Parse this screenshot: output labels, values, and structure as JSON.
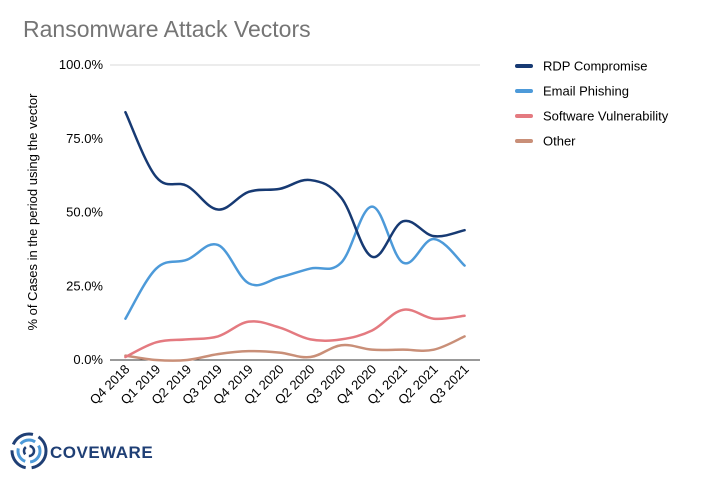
{
  "title": "Ransomware Attack Vectors",
  "logo_text": "COVEWARE",
  "chart_data": {
    "type": "line",
    "title": "Ransomware Attack Vectors",
    "ylabel": "% of Cases in the period using the vector",
    "xlabel": "",
    "ylim": [
      0,
      100
    ],
    "y_ticks": [
      "0.0%",
      "25.0%",
      "50.0%",
      "75.0%",
      "100.0%"
    ],
    "y_tick_values": [
      0,
      25,
      50,
      75,
      100
    ],
    "grid": "horizontal line at 100%",
    "legend_position": "right",
    "categories": [
      "Q4 2018",
      "Q1 2019",
      "Q2 2019",
      "Q3 2019",
      "Q4 2019",
      "Q1 2020",
      "Q2 2020",
      "Q3 2020",
      "Q4 2020",
      "Q1 2021",
      "Q2 2021",
      "Q3 2021"
    ],
    "series": [
      {
        "name": "RDP Compromise",
        "color": "#173a73",
        "values": [
          84,
          62,
          59,
          51,
          57,
          58,
          61,
          55,
          35,
          47,
          42,
          44
        ]
      },
      {
        "name": "Email Phishing",
        "color": "#4d9ad9",
        "values": [
          14,
          31,
          34,
          39,
          26,
          28,
          31,
          33,
          52,
          33,
          41,
          32
        ]
      },
      {
        "name": "Software Vulnerability",
        "color": "#e47a80",
        "values": [
          1,
          6,
          7,
          8,
          13,
          11,
          7,
          7,
          10,
          17,
          14,
          15
        ]
      },
      {
        "name": "Other",
        "color": "#c98f78",
        "values": [
          1.5,
          0,
          0,
          2,
          3,
          2.5,
          1,
          5,
          3.5,
          3.5,
          3.5,
          8
        ]
      }
    ]
  }
}
